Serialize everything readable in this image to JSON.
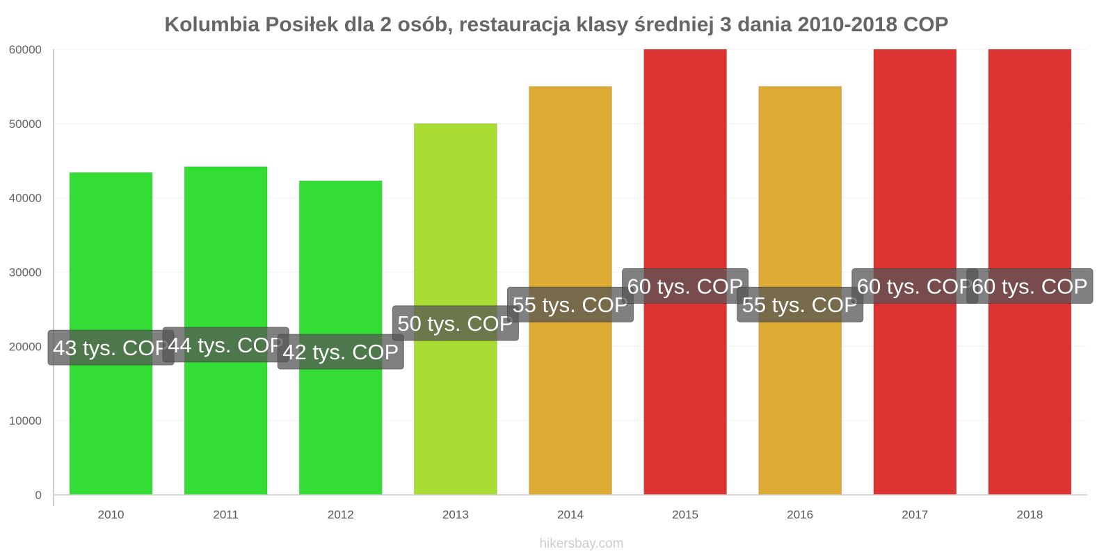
{
  "chart_data": {
    "type": "bar",
    "title": "Kolumbia Posiłek dla 2 osób, restauracja klasy średniej 3 dania 2010-2018 COP",
    "xlabel": "",
    "ylabel": "",
    "ylim": [
      0,
      60000
    ],
    "yticks": [
      "0",
      "10000",
      "20000",
      "30000",
      "40000",
      "50000",
      "60000"
    ],
    "categories": [
      "2010",
      "2011",
      "2012",
      "2013",
      "2014",
      "2015",
      "2016",
      "2017",
      "2018"
    ],
    "values": [
      43400,
      44200,
      42300,
      50000,
      55000,
      60000,
      55000,
      60000,
      60000
    ],
    "labels": [
      "43 tys. COP",
      "44 tys. COP",
      "42 tys. COP",
      "50 tys. COP",
      "55 tys. COP",
      "60 tys. COP",
      "55 tys. COP",
      "60 tys. COP",
      "60 tys. COP"
    ],
    "colors": [
      "#33dd33",
      "#33dd33",
      "#33dd33",
      "#aadd33",
      "#ddaa33",
      "#dd3333",
      "#ddaa33",
      "#dd3333",
      "#dd3333"
    ],
    "grid": true,
    "legend": "none"
  },
  "watermark": "hikersbay.com"
}
